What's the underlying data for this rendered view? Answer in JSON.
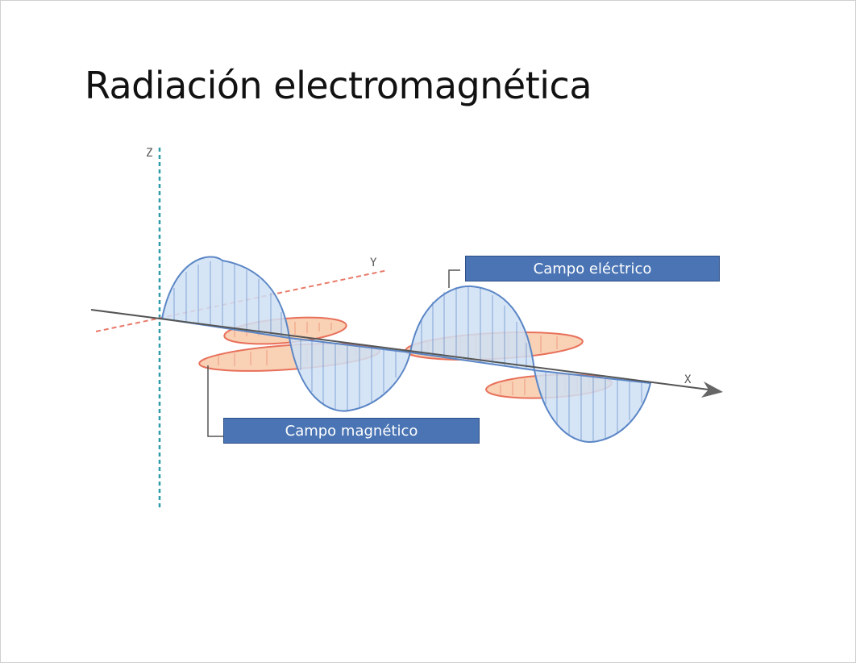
{
  "slide": {
    "title": "Radiación electromagnética"
  },
  "diagram": {
    "axes": {
      "z_label": "Z",
      "y_label": "Y",
      "x_label": "X"
    },
    "labels": {
      "electric": "Campo eléctrico",
      "magnetic": "Campo magnético"
    },
    "colors": {
      "electric_stroke": "#5b86c6",
      "electric_fill": "#cfe0f5",
      "magnetic_stroke": "#e8705a",
      "magnetic_fill": "#f8c9a8",
      "z_axis": "#2f9aa8",
      "y_axis": "#e87a6a",
      "x_axis": "#555555",
      "label_bg": "#4a74b4"
    }
  }
}
